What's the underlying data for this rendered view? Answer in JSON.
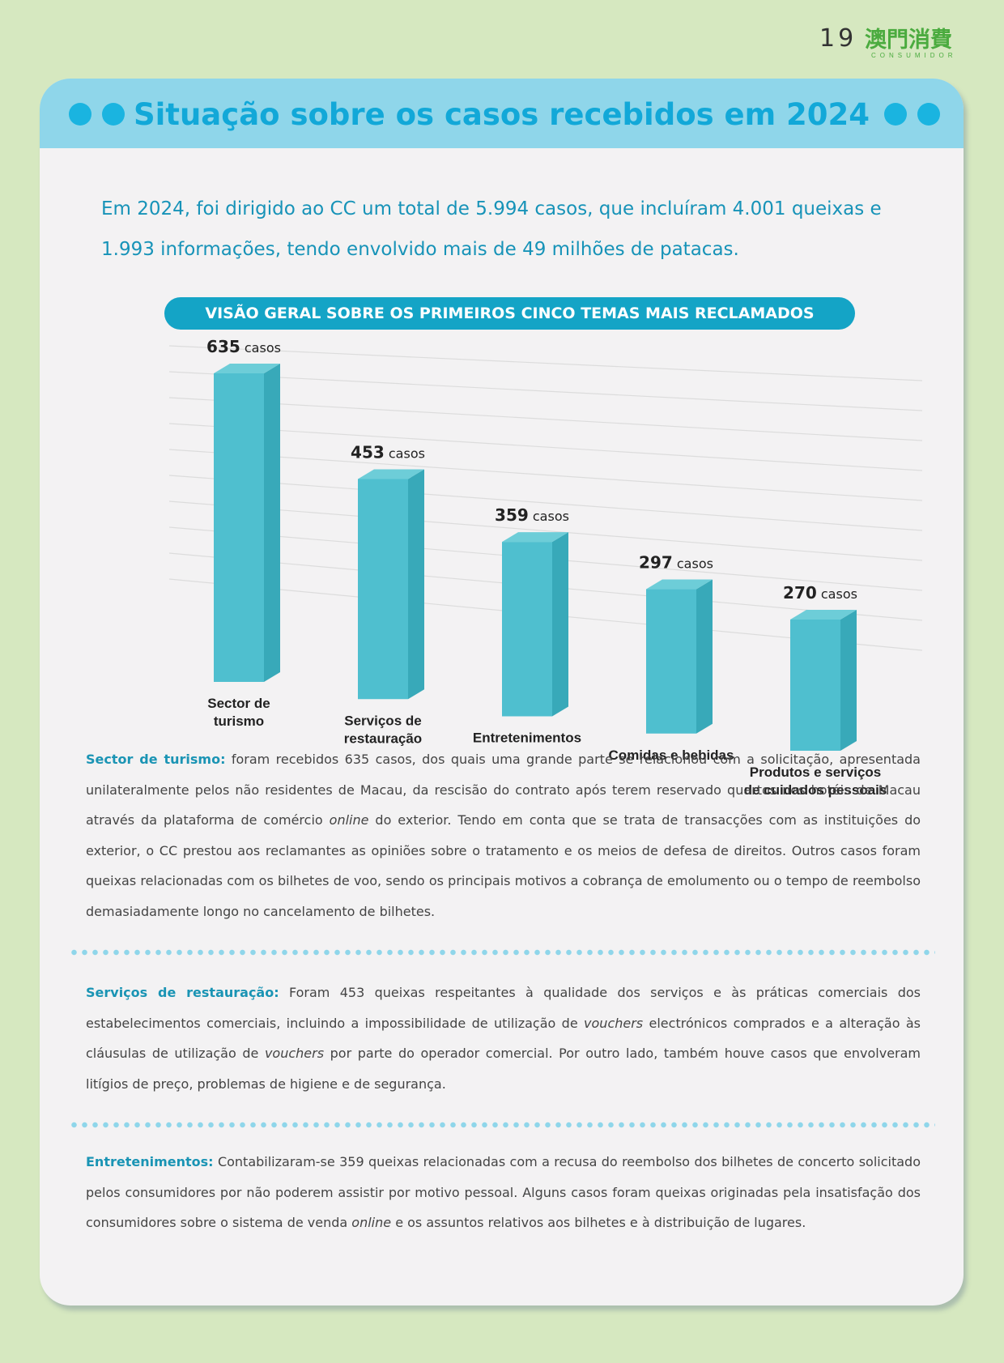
{
  "header": {
    "page_number": "19",
    "logo_cn": "澳門消費",
    "logo_en": "CONSUMIDOR"
  },
  "card": {
    "title": "Situação sobre os casos recebidos em 2024"
  },
  "intro": "Em 2024, foi dirigido ao CC um total de 5.994 casos, que incluíram 4.001 queixas e 1.993 informações, tendo envolvido mais de 49 milhões de patacas.",
  "chart_banner": "VISÃO GERAL SOBRE OS PRIMEIROS CINCO TEMAS MAIS RECLAMADOS",
  "chart_data": {
    "type": "bar",
    "title": "VISÃO GERAL SOBRE OS PRIMEIROS CINCO TEMAS MAIS RECLAMADOS",
    "categories": [
      [
        "Sector de",
        "turismo"
      ],
      [
        "Serviços de",
        "restauração"
      ],
      [
        "Entretenimentos"
      ],
      [
        "Comidas e bebidas"
      ],
      [
        "Produtos e serviços",
        "de cuidados pessoais"
      ]
    ],
    "values": [
      635,
      453,
      359,
      297,
      270
    ],
    "value_unit": "casos",
    "ylim": [
      0,
      700
    ],
    "grid": true,
    "bar_color": "#4fbfcf"
  },
  "sections": [
    {
      "label": "Sector de turismo:",
      "text_before": "foram recebidos 635 casos, dos quais uma grande parte se relacionou com a solicitação, apresentada unilateralmente pelos não residentes de Macau, da rescisão do contrato após terem reservado quartos nos hotéis de Macau através da plataforma de comércio",
      "italic": "online",
      "text_after": "do exterior. Tendo em conta que se trata de transacções com as instituições do exterior, o CC prestou aos reclamantes as opiniões sobre o tratamento e os meios de defesa de direitos. Outros casos foram queixas relacionadas com os bilhetes de voo, sendo os principais motivos a cobrança de emolumento ou o tempo de reembolso demasiadamente longo no cancelamento de bilhetes."
    },
    {
      "label": "Serviços de restauração:",
      "text_1": "Foram 453 queixas respeitantes à qualidade dos serviços e às práticas comerciais dos estabelecimentos comerciais, incluindo a impossibilidade de utilização de",
      "italic_1": "vouchers",
      "text_2": "electrónicos comprados e a alteração às cláusulas de utilização de",
      "italic_2": "vouchers",
      "text_3": "por parte do operador comercial. Por outro lado, também houve casos que envolveram litígios de preço, problemas de higiene e de segurança."
    },
    {
      "label": "Entretenimentos:",
      "text_before": "Contabilizaram-se 359 queixas relacionadas com a recusa do reembolso dos bilhetes de concerto solicitado pelos consumidores por não poderem assistir por motivo pessoal. Alguns casos foram queixas originadas pela insatisfação dos consumidores sobre o sistema de venda",
      "italic": "online",
      "text_after": "e os assuntos relativos aos bilhetes e à distribuição de lugares."
    }
  ]
}
